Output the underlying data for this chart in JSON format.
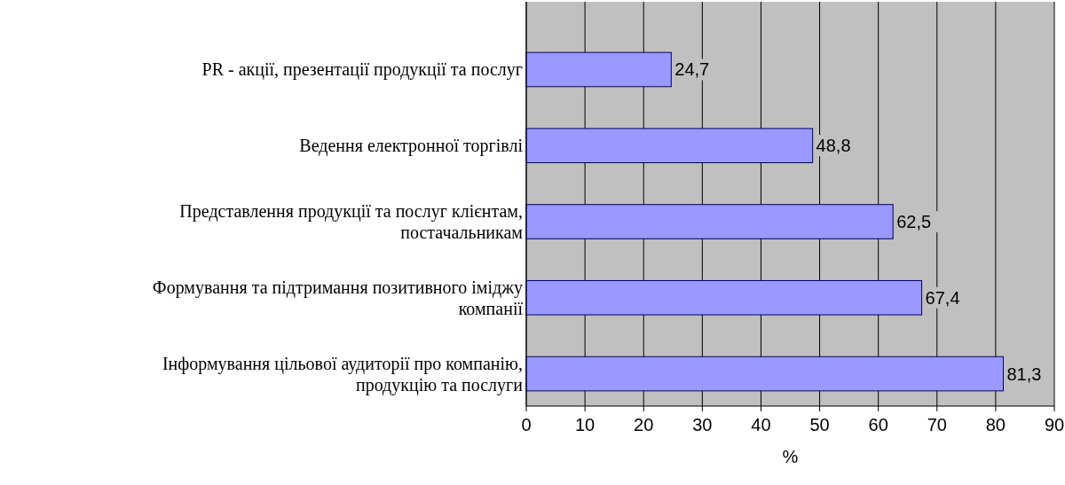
{
  "chart_data": {
    "type": "bar",
    "orientation": "horizontal",
    "xlabel": "%",
    "categories": [
      "PR - акції, презентації продукції та послуг",
      "Ведення електронної торгівлі",
      "Представлення продукції та послуг клієнтам, постачальникам",
      "Формування та підтримання позитивного іміджу компанії",
      "Інформування цільової аудиторії про компанію, продукцію та послуги"
    ],
    "values": [
      24.7,
      48.8,
      62.5,
      67.4,
      81.3
    ],
    "value_labels": [
      "24,7",
      "48,8",
      "62,5",
      "67,4",
      "81,3"
    ],
    "color": "#9999ff",
    "xlim": [
      0,
      90
    ],
    "xticks": [
      0,
      10,
      20,
      30,
      40,
      50,
      60,
      70,
      80,
      90
    ],
    "grid": "x"
  }
}
